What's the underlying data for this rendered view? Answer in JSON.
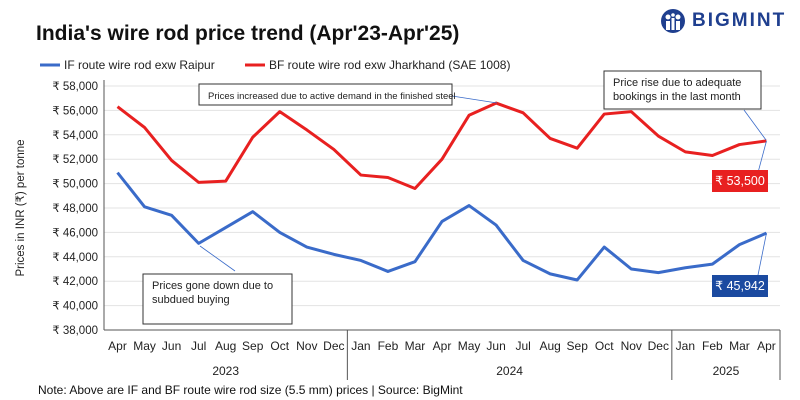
{
  "title": "India's wire rod price trend (Apr'23-Apr'25)",
  "logo": "BIGMINT",
  "note": "Note: Above are IF and BF route wire rod size (5.5 mm) prices  | Source: BigMint",
  "colors": {
    "if": "#3a6bc9",
    "bf": "#e82020",
    "if_label_bg": "#1b4aa0",
    "bf_label_bg": "#e82020"
  },
  "chart_data": {
    "type": "line",
    "title": "India's wire rod price trend (Apr'23-Apr'25)",
    "ylabel": "Prices in INR (₹) per tonne",
    "ylim": [
      38000,
      58000
    ],
    "ystep": 2000,
    "ytick_labels": [
      "₹ 38,000",
      "₹ 40,000",
      "₹ 42,000",
      "₹ 44,000",
      "₹ 46,000",
      "₹ 48,000",
      "₹ 50,000",
      "₹ 52,000",
      "₹ 54,000",
      "₹ 56,000",
      "₹ 58,000"
    ],
    "categories": [
      "Apr",
      "May",
      "Jun",
      "Jul",
      "Aug",
      "Sep",
      "Oct",
      "Nov",
      "Dec",
      "Jan",
      "Feb",
      "Mar",
      "Apr",
      "May",
      "Jun",
      "Jul",
      "Aug",
      "Sep",
      "Oct",
      "Nov",
      "Dec",
      "Jan",
      "Feb",
      "Mar",
      "Apr"
    ],
    "years": [
      {
        "label": "2023",
        "start": 0,
        "end": 8
      },
      {
        "label": "2024",
        "start": 9,
        "end": 20
      },
      {
        "label": "2025",
        "start": 21,
        "end": 24
      }
    ],
    "legend_position": "top-left",
    "series": [
      {
        "name": "IF route wire rod exw Raipur",
        "values": [
          50900,
          48100,
          47400,
          45100,
          46400,
          47700,
          46000,
          44800,
          44200,
          43700,
          42800,
          43600,
          46900,
          48200,
          46600,
          43700,
          42600,
          42100,
          44800,
          43000,
          42700,
          43100,
          43400,
          45000,
          45942
        ]
      },
      {
        "name": "BF route wire rod exw Jharkhand (SAE 1008)",
        "values": [
          56300,
          54600,
          51900,
          50100,
          50200,
          53800,
          55900,
          54400,
          52800,
          50700,
          50500,
          49600,
          52000,
          55600,
          56600,
          55800,
          53700,
          52900,
          55700,
          55900,
          53900,
          52600,
          52300,
          53200,
          53500
        ]
      }
    ],
    "data_labels": [
      "₹ 45,942",
      "₹ 53,500"
    ],
    "annotations": [
      "Prices increased due to active demand in the finished steel",
      "Prices gone down due to subdued buying",
      "Price rise due to adequate bookings in the last month"
    ]
  }
}
